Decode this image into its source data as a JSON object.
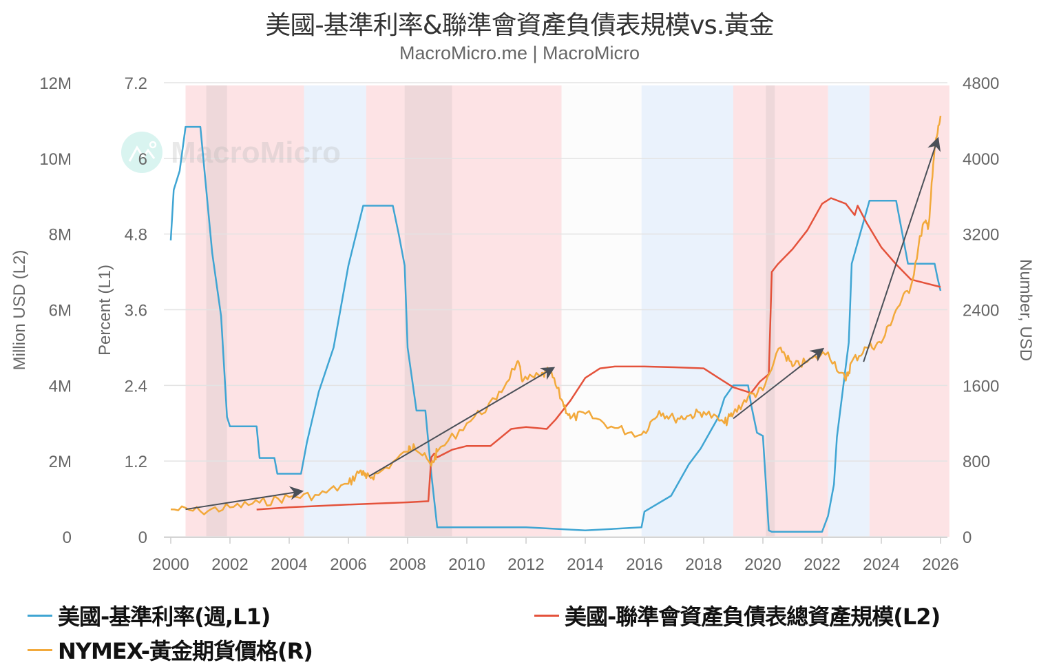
{
  "header": {
    "title": "美國-基準利率&聯準會資產負債表規模vs.黃金",
    "subtitle": "MacroMicro.me | MacroMicro"
  },
  "watermark": {
    "text": "MacroMicro",
    "icon": "mountain-chart-logo-icon"
  },
  "axes": {
    "left2": {
      "title": "Million USD (L2)",
      "ticks": [
        "0",
        "2M",
        "4M",
        "6M",
        "8M",
        "10M",
        "12M"
      ]
    },
    "left1": {
      "title": "Percent (L1)",
      "ticks": [
        "0",
        "1.2",
        "2.4",
        "3.6",
        "4.8",
        "6",
        "7.2"
      ]
    },
    "right": {
      "title": "Number, USD",
      "ticks": [
        "0",
        "800",
        "1600",
        "2400",
        "3200",
        "4000",
        "4800"
      ]
    },
    "x": {
      "ticks": [
        "2000",
        "2002",
        "2004",
        "2006",
        "2008",
        "2010",
        "2012",
        "2014",
        "2016",
        "2018",
        "2020",
        "2022",
        "2024",
        "2026"
      ]
    }
  },
  "legend": {
    "items": [
      {
        "label": "美國-基準利率(週,L1)",
        "color": "#3fa5d3"
      },
      {
        "label": "美國-聯準會資產負債表總資產規模(L2)",
        "color": "#e4523b"
      },
      {
        "label": "NYMEX-黃金期貨價格(R)",
        "color": "#f2a93b"
      }
    ]
  },
  "colors": {
    "fed_rate": "#3fa5d3",
    "fed_balance": "#e4523b",
    "gold": "#f2a93b",
    "easing_band": "#fde3e5",
    "tightening_band": "#eaf2fc",
    "recession_band": "#e8d4d6",
    "arrow": "#4a5058"
  },
  "chart_data": {
    "type": "line",
    "title": "美國-基準利率&聯準會資產負債表規模vs.黃金",
    "subtitle": "MacroMicro.me | MacroMicro",
    "xlabel": "",
    "x_range": [
      2000,
      2026.3
    ],
    "grid": true,
    "legend_position": "bottom",
    "axes": {
      "L1": {
        "label": "Percent (L1)",
        "ylim": [
          0,
          7.2
        ]
      },
      "L2": {
        "label": "Million USD (L2)",
        "ylim": [
          0,
          12000000
        ]
      },
      "R": {
        "label": "Number, USD",
        "ylim": [
          0,
          4800
        ]
      }
    },
    "series": [
      {
        "name": "美國-基準利率(週,L1)",
        "axis": "L1",
        "x": [
          2000.0,
          2000.1,
          2000.3,
          2000.5,
          2000.6,
          2001.0,
          2001.2,
          2001.4,
          2001.7,
          2001.9,
          2002.0,
          2002.9,
          2003.0,
          2003.5,
          2003.6,
          2004.4,
          2004.6,
          2005.0,
          2005.5,
          2006.0,
          2006.5,
          2007.5,
          2007.7,
          2007.9,
          2008.0,
          2008.3,
          2008.6,
          2008.8,
          2009.0,
          2010.0,
          2012.0,
          2014.0,
          2015.9,
          2016.0,
          2016.9,
          2017.2,
          2017.5,
          2017.9,
          2018.2,
          2018.5,
          2018.7,
          2019.0,
          2019.5,
          2019.6,
          2019.8,
          2020.0,
          2020.2,
          2020.3,
          2022.0,
          2022.2,
          2022.4,
          2022.5,
          2022.7,
          2022.9,
          2023.0,
          2023.3,
          2023.6,
          2024.5,
          2024.7,
          2024.9,
          2025.8,
          2025.9,
          2026.0
        ],
        "values": [
          4.7,
          5.5,
          5.8,
          6.5,
          6.5,
          6.5,
          5.5,
          4.5,
          3.5,
          1.9,
          1.75,
          1.75,
          1.25,
          1.25,
          1.0,
          1.0,
          1.5,
          2.3,
          3.0,
          4.3,
          5.25,
          5.25,
          4.8,
          4.3,
          3.0,
          2.0,
          2.0,
          1.0,
          0.15,
          0.15,
          0.15,
          0.1,
          0.15,
          0.4,
          0.65,
          0.9,
          1.15,
          1.4,
          1.65,
          1.9,
          2.2,
          2.4,
          2.4,
          2.1,
          1.65,
          1.6,
          0.1,
          0.08,
          0.08,
          0.33,
          0.83,
          1.58,
          2.33,
          3.08,
          4.33,
          4.83,
          5.33,
          5.33,
          4.83,
          4.33,
          4.33,
          4.1,
          3.9
        ]
      },
      {
        "name": "美國-聯準會資產負債表總資產規模(L2)",
        "axis": "L2",
        "x": [
          2002.9,
          2004.0,
          2006.0,
          2008.0,
          2008.7,
          2008.8,
          2008.9,
          2009.0,
          2009.5,
          2010.0,
          2010.8,
          2011.5,
          2012.0,
          2012.7,
          2013.0,
          2013.5,
          2014.0,
          2014.5,
          2015.0,
          2016.0,
          2017.0,
          2018.0,
          2018.5,
          2019.0,
          2019.6,
          2019.9,
          2020.2,
          2020.3,
          2020.5,
          2021.0,
          2021.5,
          2022.0,
          2022.3,
          2022.8,
          2023.1,
          2023.2,
          2023.5,
          2024.0,
          2024.5,
          2025.0,
          2025.5,
          2026.0
        ],
        "values": [
          720000,
          780000,
          850000,
          910000,
          940000,
          2100000,
          2200000,
          2100000,
          2300000,
          2400000,
          2400000,
          2850000,
          2900000,
          2850000,
          3100000,
          3600000,
          4200000,
          4450000,
          4500000,
          4500000,
          4480000,
          4450000,
          4200000,
          3950000,
          3800000,
          4100000,
          4300000,
          7000000,
          7200000,
          7600000,
          8100000,
          8800000,
          8950000,
          8800000,
          8500000,
          8750000,
          8300000,
          7650000,
          7200000,
          6800000,
          6700000,
          6600000
        ]
      },
      {
        "name": "NYMEX-黃金期貨價格(R)",
        "axis": "R",
        "x": [
          2000.0,
          2001.0,
          2002.0,
          2003.0,
          2004.0,
          2005.0,
          2006.0,
          2006.4,
          2006.6,
          2007.0,
          2008.0,
          2008.2,
          2008.8,
          2009.0,
          2010.0,
          2011.0,
          2011.7,
          2011.9,
          2012.5,
          2012.8,
          2013.2,
          2013.5,
          2014.0,
          2015.0,
          2015.9,
          2016.5,
          2017.0,
          2017.5,
          2018.0,
          2018.7,
          2019.0,
          2019.5,
          2020.0,
          2020.6,
          2021.0,
          2021.5,
          2022.2,
          2022.8,
          2023.0,
          2023.5,
          2024.0,
          2024.5,
          2025.0,
          2025.4,
          2025.6,
          2025.8,
          2026.0
        ],
        "values": [
          290,
          270,
          310,
          360,
          420,
          440,
          560,
          700,
          620,
          670,
          900,
          980,
          750,
          900,
          1200,
          1450,
          1850,
          1650,
          1700,
          1750,
          1450,
          1250,
          1300,
          1150,
          1080,
          1330,
          1250,
          1280,
          1320,
          1200,
          1300,
          1480,
          1550,
          2000,
          1800,
          1850,
          1950,
          1650,
          1850,
          2000,
          2050,
          2400,
          2650,
          3300,
          3300,
          4100,
          4450
        ]
      }
    ],
    "shaded_regions": [
      {
        "type": "easing",
        "from": 2000.5,
        "to": 2004.5,
        "color": "#fde3e5"
      },
      {
        "type": "recession",
        "from": 2001.2,
        "to": 2001.9,
        "color": "#e8d4d6"
      },
      {
        "type": "tightening",
        "from": 2004.5,
        "to": 2006.6,
        "color": "#eaf2fc"
      },
      {
        "type": "easing",
        "from": 2006.6,
        "to": 2013.2,
        "color": "#fde3e5"
      },
      {
        "type": "recession",
        "from": 2007.9,
        "to": 2009.5,
        "color": "#e8d4d6"
      },
      {
        "type": "neutral",
        "from": 2013.2,
        "to": 2015.9,
        "color": "#fcfcfc"
      },
      {
        "type": "tightening",
        "from": 2015.9,
        "to": 2019.0,
        "color": "#eaf2fc"
      },
      {
        "type": "easing",
        "from": 2019.0,
        "to": 2022.2,
        "color": "#fde3e5"
      },
      {
        "type": "recession",
        "from": 2020.1,
        "to": 2020.4,
        "color": "#e8d4d6"
      },
      {
        "type": "tightening",
        "from": 2022.2,
        "to": 2023.6,
        "color": "#eaf2fc"
      },
      {
        "type": "easing",
        "from": 2023.6,
        "to": 2026.3,
        "color": "#fde3e5"
      }
    ],
    "annotations": [
      {
        "type": "arrow",
        "from": [
          2000.5,
          290
        ],
        "to": [
          2004.4,
          480
        ],
        "axis": "R"
      },
      {
        "type": "arrow",
        "from": [
          2006.7,
          640
        ],
        "to": [
          2012.9,
          1780
        ],
        "axis": "R"
      },
      {
        "type": "arrow",
        "from": [
          2019.0,
          1250
        ],
        "to": [
          2022.0,
          1980
        ],
        "axis": "R"
      },
      {
        "type": "arrow",
        "from": [
          2023.4,
          1850
        ],
        "to": [
          2025.9,
          4200
        ],
        "axis": "R"
      }
    ]
  }
}
